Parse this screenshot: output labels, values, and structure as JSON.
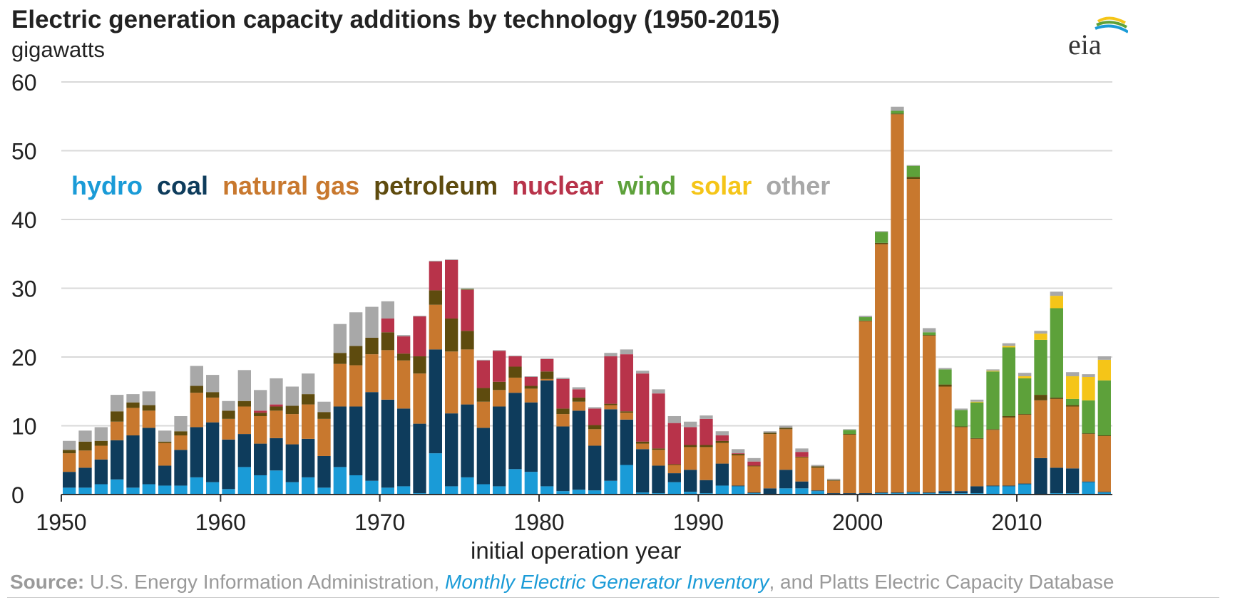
{
  "title": "Electric generation capacity additions by technology (1950-2015)",
  "units_label": "gigawatts",
  "logo_text": "eia",
  "xlabel": "initial operation year",
  "source": {
    "label": "Source:",
    "text_before": " U.S. Energy Information Administration, ",
    "link_text": "Monthly Electric Generator Inventory",
    "text_after": ", and Platts Electric Capacity Database"
  },
  "legend_entries": [
    {
      "name": "hydro",
      "color": "#1a9bd7"
    },
    {
      "name": "coal",
      "color": "#0e3c5c"
    },
    {
      "name": "natural gas",
      "color": "#c8782e"
    },
    {
      "name": "petroleum",
      "color": "#5e4b0e"
    },
    {
      "name": "nuclear",
      "color": "#b8334a"
    },
    {
      "name": "wind",
      "color": "#5da13a"
    },
    {
      "name": "solar",
      "color": "#f5c518"
    },
    {
      "name": "other",
      "color": "#a8a8a8"
    }
  ],
  "chart_data": {
    "type": "bar",
    "stacked": true,
    "title": "Electric generation capacity additions by technology (1950-2015)",
    "ylabel": "gigawatts",
    "xlabel": "initial operation year",
    "ylim": [
      0,
      60
    ],
    "yticks": [
      0,
      10,
      20,
      30,
      40,
      50,
      60
    ],
    "xticks": [
      1950,
      1960,
      1970,
      1980,
      1990,
      2000,
      2010
    ],
    "grid": true,
    "legend_placement": "inline upper-left",
    "categories": [
      1950,
      1951,
      1952,
      1953,
      1954,
      1955,
      1956,
      1957,
      1958,
      1959,
      1960,
      1961,
      1962,
      1963,
      1964,
      1965,
      1966,
      1967,
      1968,
      1969,
      1970,
      1971,
      1972,
      1973,
      1974,
      1975,
      1976,
      1977,
      1978,
      1979,
      1980,
      1981,
      1982,
      1983,
      1984,
      1985,
      1986,
      1987,
      1988,
      1989,
      1990,
      1991,
      1992,
      1993,
      1994,
      1995,
      1996,
      1997,
      1998,
      1999,
      2000,
      2001,
      2002,
      2003,
      2004,
      2005,
      2006,
      2007,
      2008,
      2009,
      2010,
      2011,
      2012,
      2013,
      2014,
      2015
    ],
    "series": [
      {
        "name": "hydro",
        "color": "#1a9bd7",
        "values": [
          1.0,
          1.0,
          1.5,
          2.2,
          1.0,
          1.5,
          1.3,
          1.3,
          2.5,
          1.8,
          0.8,
          4.0,
          2.8,
          3.5,
          1.8,
          2.5,
          1.0,
          4.0,
          2.8,
          2.0,
          1.0,
          1.2,
          0.2,
          6.0,
          1.2,
          2.5,
          1.5,
          1.2,
          3.7,
          3.3,
          1.2,
          0.5,
          0.7,
          0.6,
          2.0,
          4.3,
          0.3,
          0.2,
          1.8,
          0.4,
          0.2,
          1.3,
          1.2,
          0.2,
          0.1,
          0.9,
          0.9,
          0.5,
          0.1,
          0.1,
          0.1,
          0.2,
          0.2,
          0.3,
          0.2,
          0.2,
          0.2,
          0.2,
          1.2,
          1.2,
          1.5,
          0.1,
          0.2,
          0.2,
          1.8,
          0.3
        ]
      },
      {
        "name": "coal",
        "color": "#0e3c5c",
        "values": [
          2.3,
          2.9,
          3.6,
          5.7,
          7.6,
          8.2,
          2.9,
          5.2,
          7.3,
          8.7,
          7.2,
          4.8,
          4.6,
          4.7,
          5.5,
          5.6,
          4.6,
          8.8,
          10.0,
          12.9,
          12.8,
          11.3,
          10.1,
          15.1,
          10.6,
          10.6,
          8.2,
          11.6,
          11.1,
          10.1,
          15.4,
          9.4,
          11.5,
          6.5,
          10.4,
          6.6,
          6.3,
          4.0,
          1.3,
          3.2,
          1.9,
          3.2,
          0.1,
          0.1,
          0.8,
          2.7,
          1.0,
          0.1,
          0.1,
          0.1,
          0.1,
          0.1,
          0.1,
          0.1,
          0.1,
          0.3,
          0.3,
          1.0,
          0.1,
          0.1,
          0.1,
          5.2,
          3.7,
          3.6,
          0.1,
          0.1
        ]
      },
      {
        "name": "natural gas",
        "color": "#c8782e",
        "values": [
          2.7,
          2.5,
          2.0,
          2.7,
          4.0,
          2.5,
          3.3,
          2.1,
          5.0,
          3.6,
          3.0,
          4.0,
          4.0,
          4.0,
          4.4,
          5.0,
          5.4,
          6.2,
          6.0,
          5.5,
          7.2,
          7.0,
          7.3,
          6.5,
          9.0,
          8.0,
          3.8,
          2.4,
          2.2,
          2.0,
          0.2,
          1.8,
          1.3,
          2.4,
          0.6,
          1.0,
          0.8,
          2.3,
          1.2,
          3.3,
          4.8,
          3.0,
          4.4,
          3.8,
          7.9,
          5.9,
          3.5,
          3.3,
          1.8,
          8.5,
          25.0,
          36.1,
          55.0,
          45.5,
          22.8,
          15.2,
          9.3,
          6.9,
          8.1,
          9.9,
          10.0,
          8.4,
          10.0,
          9.0,
          6.9,
          8.1
        ]
      },
      {
        "name": "petroleum",
        "color": "#5e4b0e",
        "values": [
          0.5,
          1.3,
          0.7,
          1.5,
          0.8,
          0.8,
          0.2,
          0.6,
          1.0,
          0.8,
          1.2,
          0.8,
          0.5,
          0.6,
          1.2,
          1.5,
          1.0,
          1.6,
          2.8,
          2.4,
          2.6,
          1.0,
          2.5,
          2.1,
          4.8,
          2.7,
          2.0,
          1.2,
          1.6,
          0.4,
          1.1,
          0.8,
          0.6,
          0.6,
          0.2,
          0.2,
          0.3,
          0.2,
          0.1,
          0.3,
          0.3,
          0.3,
          0.2,
          0.1,
          0.2,
          0.2,
          0.1,
          0.2,
          0.1,
          0.1,
          0.1,
          0.2,
          0.1,
          0.3,
          0.1,
          0.3,
          0.1,
          0.1,
          0.1,
          0.2,
          0.1,
          0.8,
          0.2,
          0.2,
          0.1,
          0.1
        ]
      },
      {
        "name": "nuclear",
        "color": "#b8334a",
        "values": [
          0,
          0,
          0,
          0,
          0,
          0,
          0,
          0,
          0,
          0,
          0,
          0,
          0.3,
          0.3,
          0,
          0,
          0,
          0,
          0,
          0,
          2.0,
          2.5,
          5.8,
          4.2,
          8.5,
          6.0,
          4.0,
          4.5,
          1.5,
          1.3,
          1.8,
          4.3,
          1.2,
          2.4,
          6.9,
          8.3,
          9.9,
          8.0,
          6.0,
          2.6,
          3.8,
          0.8,
          0.1,
          0.6,
          0,
          0,
          0.7,
          0,
          0,
          0,
          0,
          0,
          0,
          0,
          0,
          0,
          0,
          0,
          0,
          0,
          0,
          0,
          0,
          0,
          0,
          0
        ]
      },
      {
        "name": "wind",
        "color": "#5da13a",
        "values": [
          0,
          0,
          0,
          0,
          0,
          0,
          0,
          0,
          0,
          0,
          0,
          0,
          0,
          0,
          0,
          0,
          0,
          0,
          0,
          0,
          0,
          0,
          0,
          0,
          0,
          0.1,
          0,
          0,
          0,
          0,
          0,
          0,
          0,
          0,
          0,
          0,
          0,
          0,
          0,
          0,
          0,
          0,
          0,
          0,
          0,
          0,
          0,
          0,
          0,
          0.6,
          0.5,
          1.6,
          0.4,
          1.6,
          0.4,
          2.2,
          2.4,
          5.2,
          8.4,
          10.0,
          5.2,
          8.0,
          13.0,
          0.9,
          4.8,
          8.0
        ]
      },
      {
        "name": "solar",
        "color": "#f5c518",
        "values": [
          0,
          0,
          0,
          0,
          0,
          0,
          0,
          0,
          0,
          0,
          0,
          0,
          0,
          0,
          0,
          0,
          0,
          0,
          0,
          0,
          0,
          0,
          0,
          0,
          0,
          0,
          0,
          0,
          0,
          0,
          0,
          0,
          0,
          0,
          0,
          0,
          0,
          0,
          0,
          0,
          0,
          0,
          0,
          0,
          0,
          0,
          0,
          0,
          0,
          0,
          0,
          0,
          0,
          0,
          0,
          0,
          0,
          0.1,
          0.1,
          0.2,
          0.3,
          0.9,
          1.8,
          3.3,
          3.4,
          3.0
        ]
      },
      {
        "name": "other",
        "color": "#a8a8a8",
        "values": [
          1.3,
          1.6,
          2.0,
          2.4,
          1.2,
          2.0,
          1.6,
          2.2,
          2.9,
          2.5,
          1.4,
          4.5,
          3.0,
          3.8,
          2.8,
          3.0,
          1.5,
          4.2,
          4.9,
          4.5,
          2.5,
          0.2,
          0.1,
          0.1,
          0.1,
          0.1,
          0.1,
          0.1,
          0.1,
          0.1,
          0.1,
          0.2,
          0.3,
          0.2,
          0.5,
          0.7,
          0.4,
          0.6,
          1.0,
          0.8,
          0.5,
          0.6,
          0.6,
          0.5,
          0.2,
          0.3,
          0.5,
          0.2,
          0.2,
          0.1,
          0.2,
          0.1,
          0.6,
          0.1,
          0.6,
          0.2,
          0.2,
          0.3,
          0.2,
          0.4,
          0.5,
          0.4,
          0.6,
          0.6,
          0.4,
          0.5
        ]
      }
    ]
  }
}
